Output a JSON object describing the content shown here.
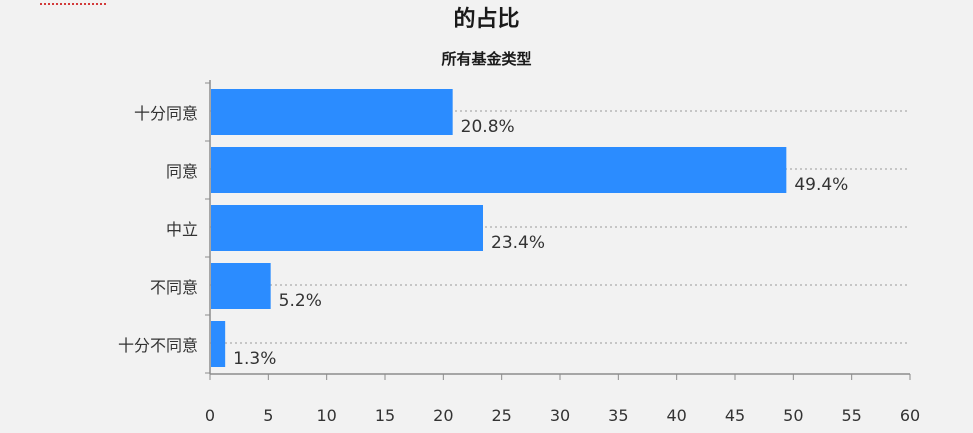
{
  "page": {
    "title_line_1": "",
    "title_line_2": "的占比",
    "subtitle": "所有基金类型"
  },
  "colors": {
    "bar": "#2b8cff",
    "background": "#f2f2f2",
    "axis": "#8c8c8c",
    "grid": "#9a9a9a"
  },
  "chart_data": {
    "type": "bar",
    "orientation": "horizontal",
    "title": "所有基金类型",
    "categories": [
      "十分同意",
      "同意",
      "中立",
      "不同意",
      "十分不同意"
    ],
    "values": [
      20.8,
      49.4,
      23.4,
      5.2,
      1.3
    ],
    "value_labels": [
      "20.8%",
      "49.4%",
      "23.4%",
      "5.2%",
      "1.3%"
    ],
    "xlim": [
      0,
      60
    ],
    "xticks": [
      0,
      5,
      10,
      15,
      20,
      25,
      30,
      35,
      40,
      45,
      50,
      55,
      60
    ],
    "xlabel": "",
    "ylabel": "",
    "grid": "dotted horizontal",
    "legend": "none"
  }
}
